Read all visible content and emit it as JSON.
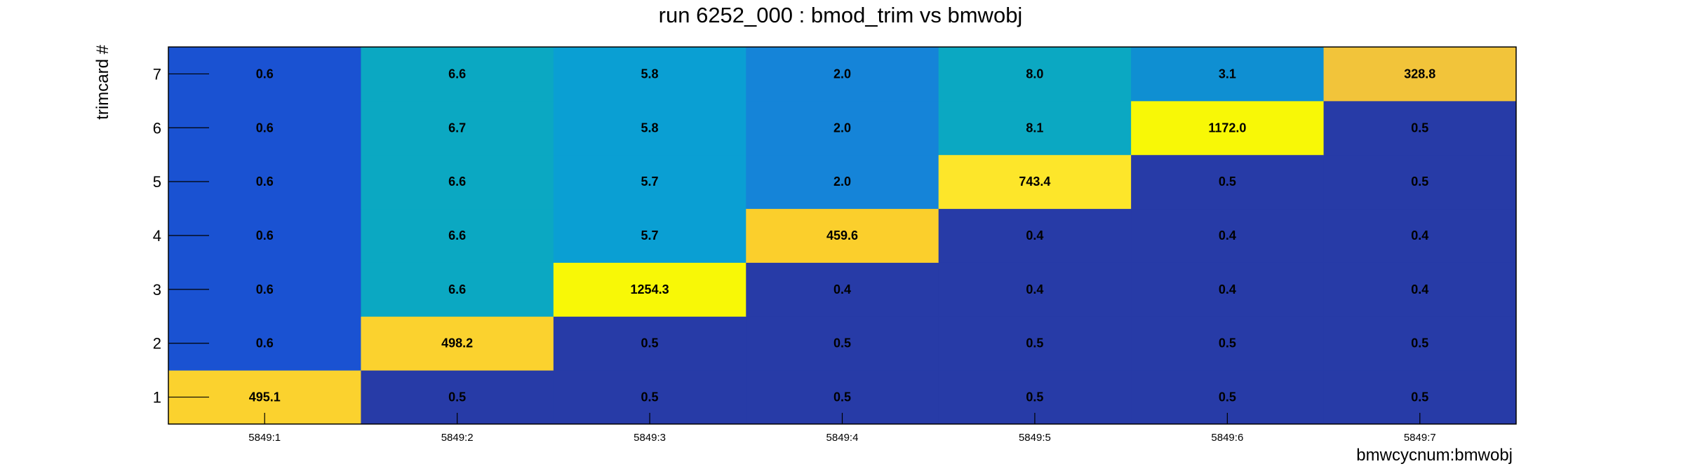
{
  "chart_data": {
    "type": "heatmap",
    "title": "run 6252_000 : bmod_trim vs bmwobj",
    "xlabel": "bmwcycnum:bmwobj",
    "ylabel": "trimcard #",
    "x_categories": [
      "5849:1",
      "5849:2",
      "5849:3",
      "5849:4",
      "5849:5",
      "5849:6",
      "5849:7"
    ],
    "y_categories": [
      "1",
      "2",
      "3",
      "4",
      "5",
      "6",
      "7"
    ],
    "values": [
      [
        495.1,
        0.5,
        0.5,
        0.5,
        0.5,
        0.5,
        0.5
      ],
      [
        0.6,
        498.2,
        0.5,
        0.5,
        0.5,
        0.5,
        0.5
      ],
      [
        0.6,
        6.6,
        1254.3,
        0.4,
        0.4,
        0.4,
        0.4
      ],
      [
        0.6,
        6.6,
        5.7,
        459.6,
        0.4,
        0.4,
        0.4
      ],
      [
        0.6,
        6.6,
        5.7,
        2.0,
        743.4,
        0.5,
        0.5
      ],
      [
        0.6,
        6.7,
        5.8,
        2.0,
        8.1,
        1172.0,
        0.5
      ],
      [
        0.6,
        6.6,
        5.8,
        2.0,
        8.0,
        3.1,
        328.8
      ]
    ],
    "value_labels": [
      [
        "495.1",
        "0.5",
        "0.5",
        "0.5",
        "0.5",
        "0.5",
        "0.5"
      ],
      [
        "0.6",
        "498.2",
        "0.5",
        "0.5",
        "0.5",
        "0.5",
        "0.5"
      ],
      [
        "0.6",
        "6.6",
        "1254.3",
        "0.4",
        "0.4",
        "0.4",
        "0.4"
      ],
      [
        "0.6",
        "6.6",
        "5.7",
        "459.6",
        "0.4",
        "0.4",
        "0.4"
      ],
      [
        "0.6",
        "6.6",
        "5.7",
        "2.0",
        "743.4",
        "0.5",
        "0.5"
      ],
      [
        "0.6",
        "6.7",
        "5.8",
        "2.0",
        "8.1",
        "1172.0",
        "0.5"
      ],
      [
        "0.6",
        "6.6",
        "5.8",
        "2.0",
        "8.0",
        "3.1",
        "328.8"
      ]
    ],
    "colors": {
      "0.4": "#273ba7",
      "0.5": "#273ba7",
      "0.6": "#1a52d2",
      "2.0": "#1584d8",
      "3.1": "#0f8fd2",
      "5.7": "#0a9fd3",
      "5.8": "#0a9fd3",
      "6.6": "#0ba8c2",
      "6.7": "#0ba8c2",
      "8.0": "#0ba8c2",
      "8.1": "#0ba8c2",
      "328.8": "#f2c43a",
      "459.6": "#fbcf2c",
      "495.1": "#fbd22e",
      "498.2": "#fbd22e",
      "743.4": "#fde62a",
      "1172.0": "#f8f806",
      "1254.3": "#f8f806"
    },
    "legend": "none",
    "grid": false
  }
}
